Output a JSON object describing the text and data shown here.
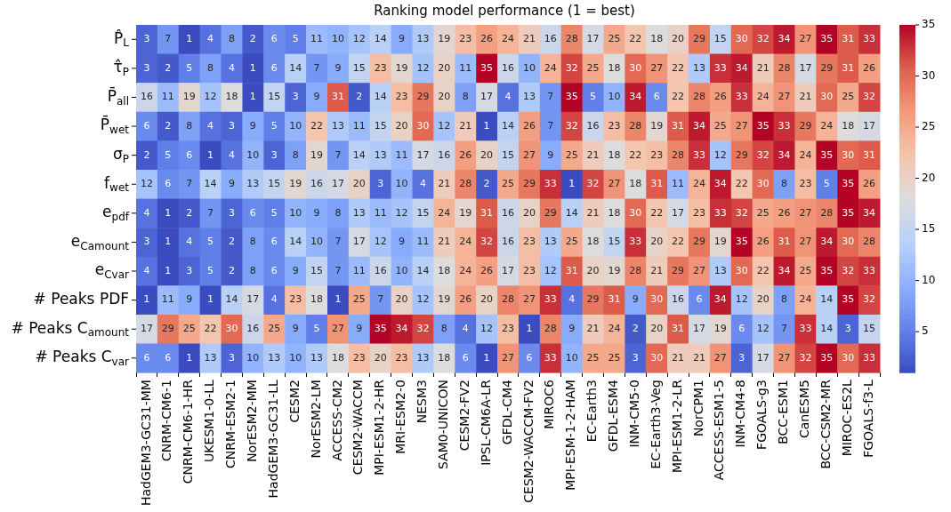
{
  "chart_data": {
    "type": "heatmap",
    "title": "Ranking model performance (1 = best)",
    "categories": [
      "HadGEM3-GC31-MM",
      "CNRM-CM6-1",
      "CNRM-CM6-1-HR",
      "UKESM1-0-LL",
      "CNRM-ESM2-1",
      "NorESM2-MM",
      "HadGEM3-GC31-LL",
      "CESM2",
      "NorESM2-LM",
      "ACCESS-CM2",
      "CESM2-WACCM",
      "MPI-ESM1-2-HR",
      "MRI-ESM2-0",
      "NESM3",
      "SAM0-UNICON",
      "CESM2-FV2",
      "IPSL-CM6A-LR",
      "GFDL-CM4",
      "CESM2-WACCM-FV2",
      "MIROC6",
      "MPI-ESM-1-2-HAM",
      "EC-Earth3",
      "GFDL-ESM4",
      "INM-CM5-0",
      "EC-Earth3-Veg",
      "MPI-ESM1-2-LR",
      "NorCPM1",
      "ACCESS-ESM1-5",
      "INM-CM4-8",
      "FGOALS-g3",
      "BCC-ESM1",
      "CanESM5",
      "BCC-CSM2-MR",
      "MIROC-ES2L",
      "FGOALS-f3-L"
    ],
    "y_categories": [
      "P̂$_{L}$",
      "τ̂$_{P}$",
      "P̄$_{all}$",
      "P̄$_{wet}$",
      "σ$_{P}$",
      "f$_{wet}$",
      "e$_{pdf}$",
      "e$_{C}$$_{amount}$",
      "e$_{C}$$_{var}$",
      "# Peaks PDF",
      "# Peaks C$_{amount}$",
      "# Peaks C$_{var}$"
    ],
    "cells": [
      [
        3,
        7,
        1,
        4,
        8,
        2,
        6,
        5,
        11,
        10,
        12,
        14,
        9,
        13,
        19,
        23,
        26,
        24,
        21,
        16,
        28,
        17,
        25,
        22,
        18,
        20,
        29,
        15,
        30,
        32,
        34,
        27,
        35,
        31,
        33
      ],
      [
        3,
        2,
        5,
        8,
        4,
        1,
        6,
        14,
        7,
        9,
        15,
        23,
        19,
        12,
        20,
        11,
        35,
        16,
        10,
        24,
        32,
        25,
        18,
        30,
        27,
        22,
        13,
        33,
        34,
        21,
        28,
        17,
        29,
        31,
        26
      ],
      [
        16,
        11,
        19,
        12,
        18,
        1,
        15,
        3,
        9,
        31,
        2,
        14,
        23,
        29,
        20,
        8,
        17,
        4,
        13,
        7,
        35,
        5,
        10,
        34,
        6,
        22,
        28,
        26,
        33,
        24,
        27,
        21,
        30,
        25,
        32
      ],
      [
        6,
        2,
        8,
        4,
        3,
        9,
        5,
        10,
        22,
        13,
        11,
        15,
        20,
        30,
        12,
        21,
        1,
        14,
        26,
        7,
        32,
        16,
        23,
        28,
        19,
        31,
        34,
        25,
        27,
        35,
        33,
        29,
        24,
        18,
        17
      ],
      [
        2,
        5,
        6,
        1,
        4,
        10,
        3,
        8,
        19,
        7,
        14,
        13,
        11,
        17,
        16,
        26,
        20,
        15,
        27,
        9,
        25,
        21,
        18,
        22,
        23,
        28,
        33,
        12,
        29,
        32,
        34,
        24,
        35,
        30,
        31
      ],
      [
        12,
        6,
        7,
        14,
        9,
        13,
        15,
        19,
        16,
        17,
        20,
        3,
        10,
        4,
        21,
        28,
        2,
        25,
        29,
        33,
        1,
        32,
        27,
        18,
        31,
        11,
        24,
        34,
        22,
        30,
        8,
        23,
        5,
        35,
        26
      ],
      [
        4,
        1,
        2,
        7,
        3,
        6,
        5,
        10,
        9,
        8,
        13,
        11,
        12,
        15,
        24,
        19,
        31,
        16,
        20,
        29,
        14,
        21,
        18,
        30,
        22,
        17,
        23,
        33,
        32,
        25,
        26,
        27,
        28,
        35,
        34
      ],
      [
        3,
        1,
        4,
        5,
        2,
        8,
        6,
        14,
        10,
        7,
        17,
        12,
        9,
        11,
        21,
        24,
        32,
        16,
        23,
        13,
        25,
        18,
        15,
        33,
        20,
        22,
        29,
        19,
        35,
        26,
        31,
        27,
        34,
        30,
        28
      ],
      [
        4,
        1,
        3,
        5,
        2,
        8,
        6,
        9,
        15,
        7,
        11,
        16,
        10,
        14,
        18,
        24,
        26,
        17,
        23,
        12,
        31,
        20,
        19,
        28,
        21,
        29,
        27,
        13,
        30,
        22,
        34,
        25,
        35,
        32,
        33
      ],
      [
        1,
        11,
        9,
        1,
        14,
        17,
        4,
        23,
        18,
        1,
        25,
        7,
        20,
        12,
        19,
        26,
        20,
        28,
        27,
        33,
        4,
        29,
        31,
        9,
        30,
        16,
        6,
        34,
        12,
        20,
        8,
        24,
        14,
        35,
        32
      ],
      [
        17,
        29,
        25,
        22,
        30,
        16,
        25,
        9,
        5,
        27,
        9,
        35,
        34,
        32,
        8,
        4,
        12,
        23,
        1,
        28,
        9,
        21,
        24,
        2,
        20,
        31,
        17,
        19,
        6,
        12,
        7,
        33,
        14,
        3,
        15
      ],
      [
        6,
        6,
        1,
        13,
        3,
        10,
        13,
        10,
        13,
        18,
        23,
        20,
        23,
        13,
        18,
        6,
        1,
        27,
        6,
        33,
        10,
        25,
        25,
        3,
        30,
        21,
        21,
        27,
        3,
        17,
        27,
        32,
        35,
        30,
        33
      ]
    ],
    "data_labels": true,
    "clim": [
      1,
      35
    ],
    "cticks": [
      5,
      10,
      15,
      20,
      25,
      30,
      35
    ]
  }
}
